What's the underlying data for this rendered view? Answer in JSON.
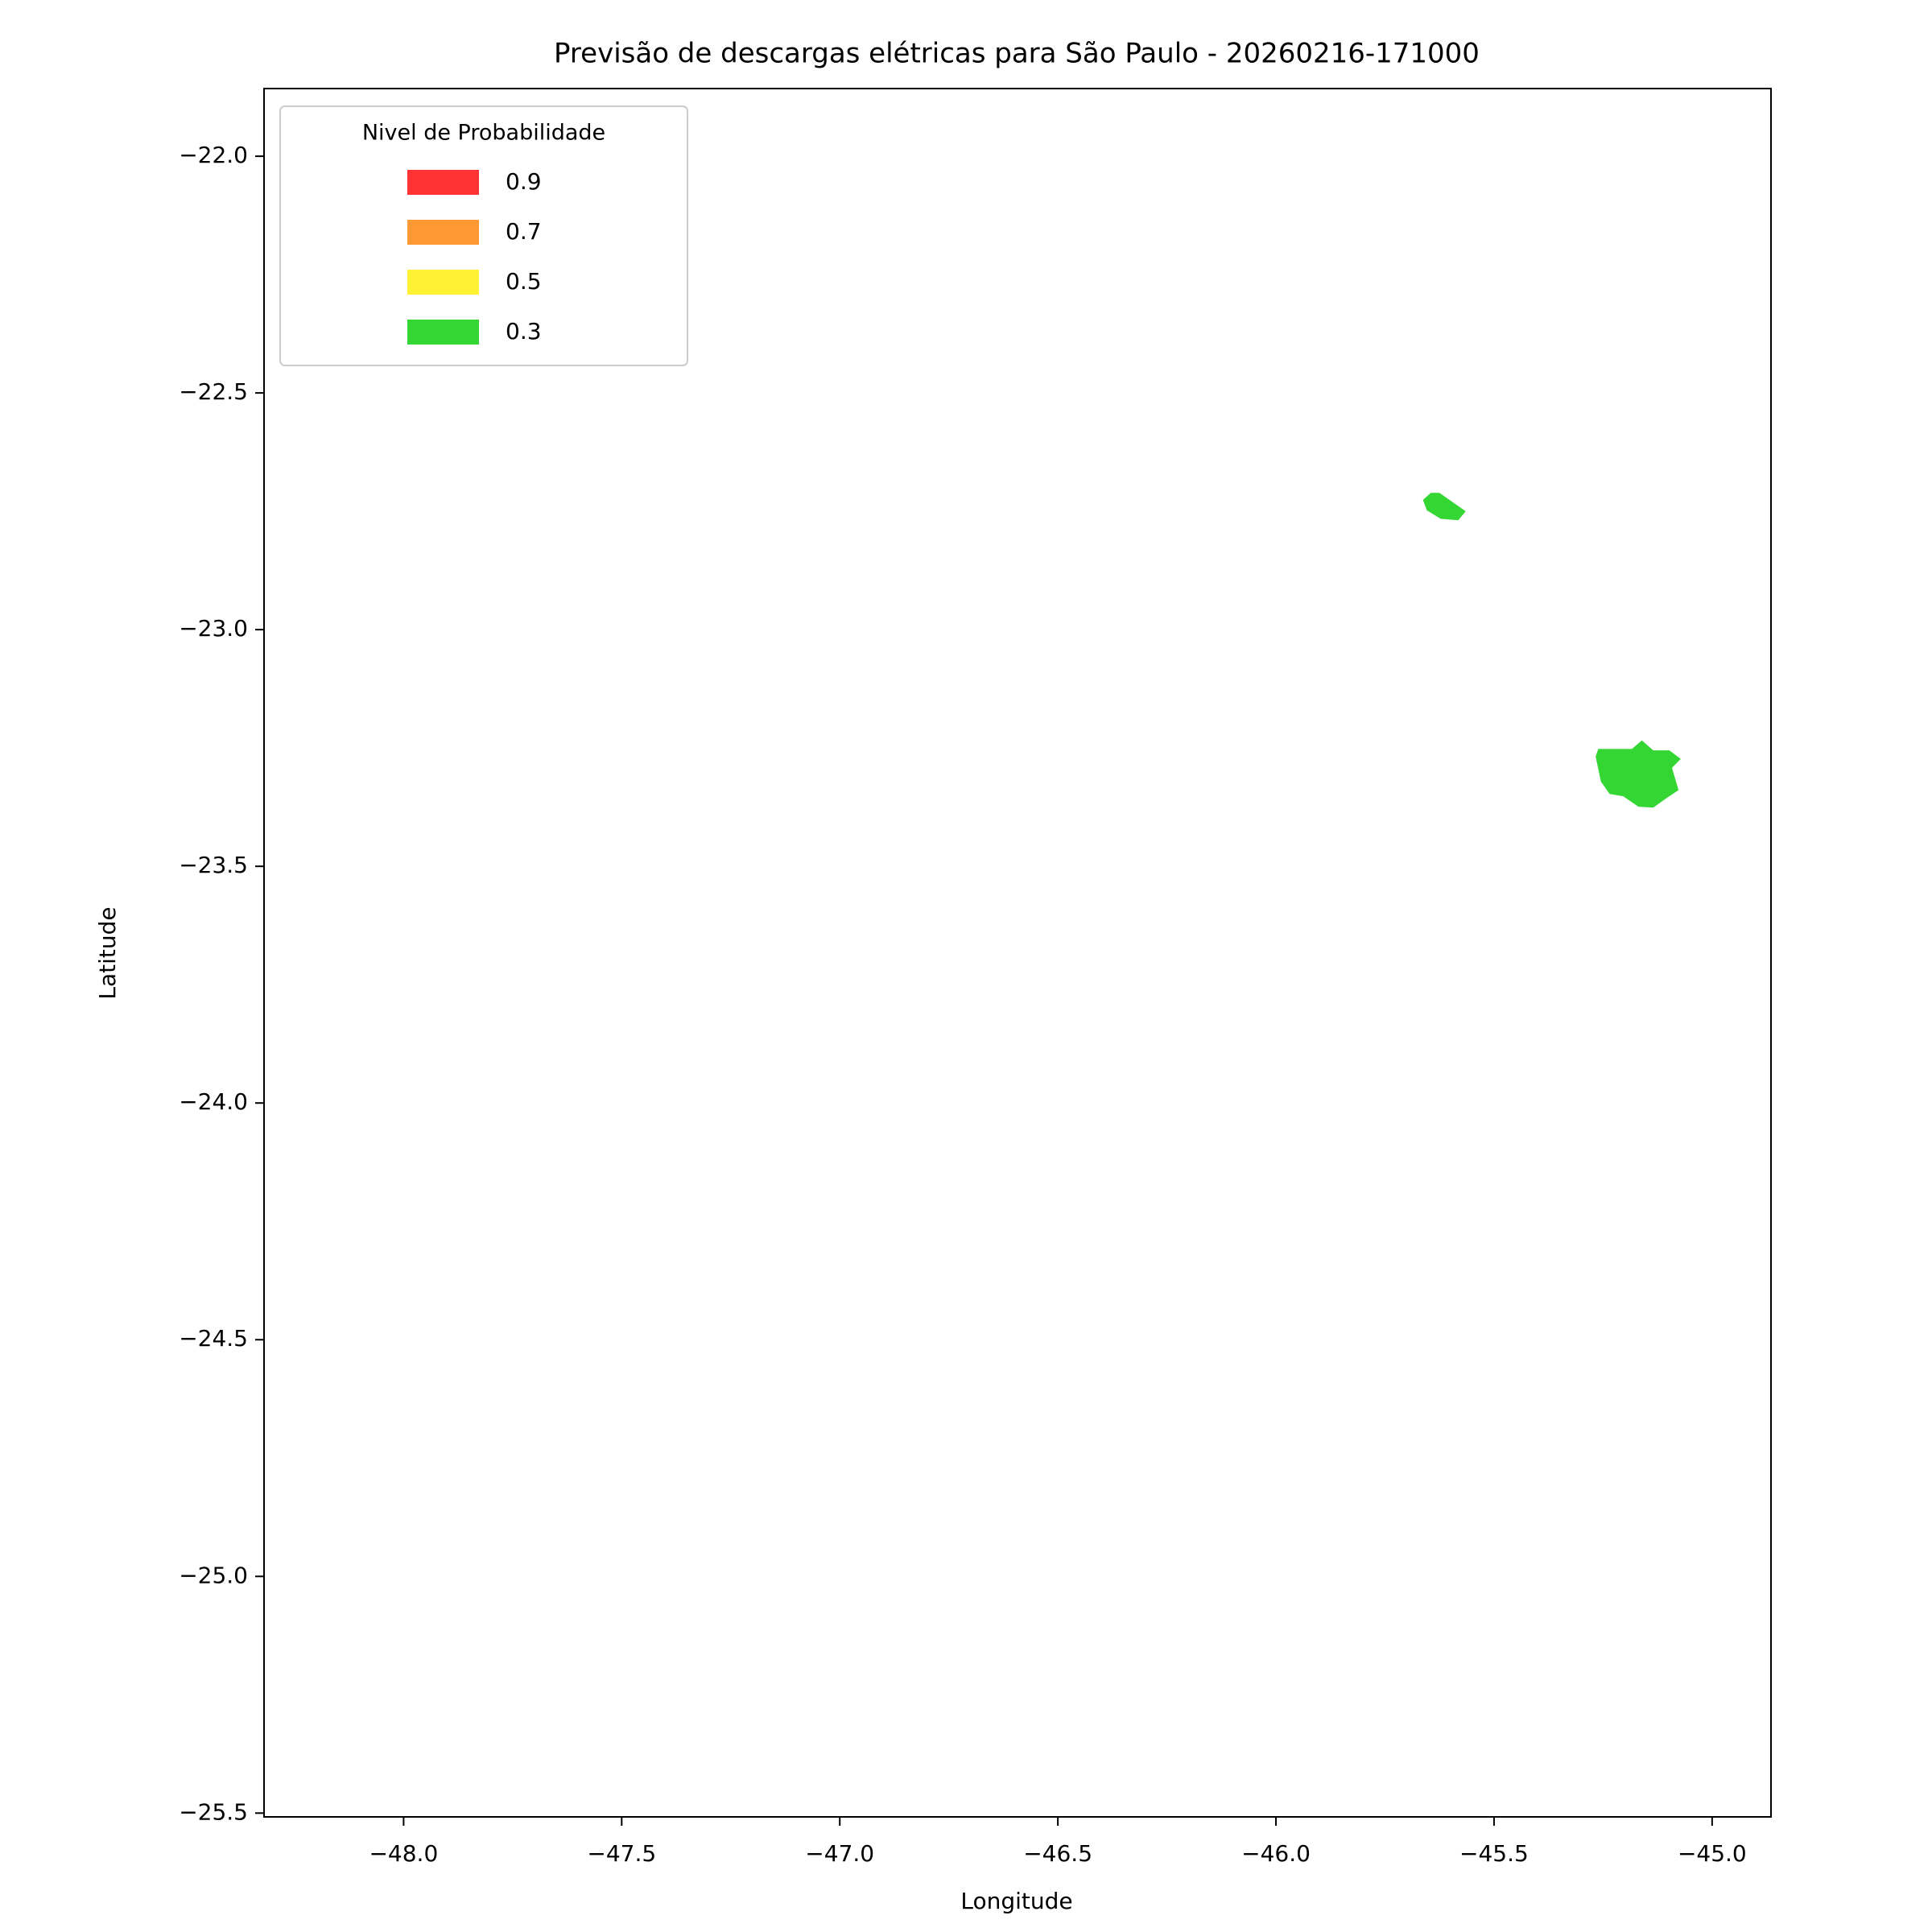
{
  "chart_data": {
    "type": "polygon",
    "title": "Previsão de descargas elétricas para São Paulo - 20260216-171000",
    "xlabel": "Longitude",
    "ylabel": "Latitude",
    "xlim": [
      -48.32,
      -44.865
    ],
    "ylim": [
      -25.508,
      -21.857
    ],
    "xticks": [
      {
        "value": -48.0,
        "label": "−48.0"
      },
      {
        "value": -47.5,
        "label": "−47.5"
      },
      {
        "value": -47.0,
        "label": "−47.0"
      },
      {
        "value": -46.5,
        "label": "−46.5"
      },
      {
        "value": -46.0,
        "label": "−46.0"
      },
      {
        "value": -45.5,
        "label": "−45.5"
      },
      {
        "value": -45.0,
        "label": "−45.0"
      }
    ],
    "yticks": [
      {
        "value": -22.0,
        "label": "−22.0"
      },
      {
        "value": -22.5,
        "label": "−22.5"
      },
      {
        "value": -23.0,
        "label": "−23.0"
      },
      {
        "value": -23.5,
        "label": "−23.5"
      },
      {
        "value": -24.0,
        "label": "−24.0"
      },
      {
        "value": -24.5,
        "label": "−24.5"
      },
      {
        "value": -25.0,
        "label": "−25.0"
      },
      {
        "value": -25.5,
        "label": "−25.5"
      }
    ],
    "legend_title": "Nivel de Probabilidade",
    "legend_position": "upper left",
    "fill_alpha": 0.8,
    "series": [
      {
        "name": "0.9",
        "color": "#ff0000",
        "polygons": []
      },
      {
        "name": "0.7",
        "color": "#ff8000",
        "polygons": []
      },
      {
        "name": "0.5",
        "color": "#ffee00",
        "polygons": []
      },
      {
        "name": "0.3",
        "color": "#00cc00",
        "polygons": [
          {
            "x": [
              -45.663,
              -45.645,
              -45.625,
              -45.565,
              -45.582,
              -45.622,
              -45.654
            ],
            "y": [
              -22.726,
              -22.711,
              -22.711,
              -22.75,
              -22.769,
              -22.766,
              -22.748
            ]
          },
          {
            "x": [
              -45.261,
              -45.184,
              -45.161,
              -45.135,
              -45.098,
              -45.072,
              -45.092,
              -45.077,
              -45.103,
              -45.135,
              -45.169,
              -45.204,
              -45.235,
              -45.255,
              -45.267
            ],
            "y": [
              -23.252,
              -23.252,
              -23.234,
              -23.255,
              -23.255,
              -23.273,
              -23.292,
              -23.339,
              -23.355,
              -23.376,
              -23.374,
              -23.352,
              -23.347,
              -23.321,
              -23.268
            ]
          }
        ]
      }
    ]
  }
}
